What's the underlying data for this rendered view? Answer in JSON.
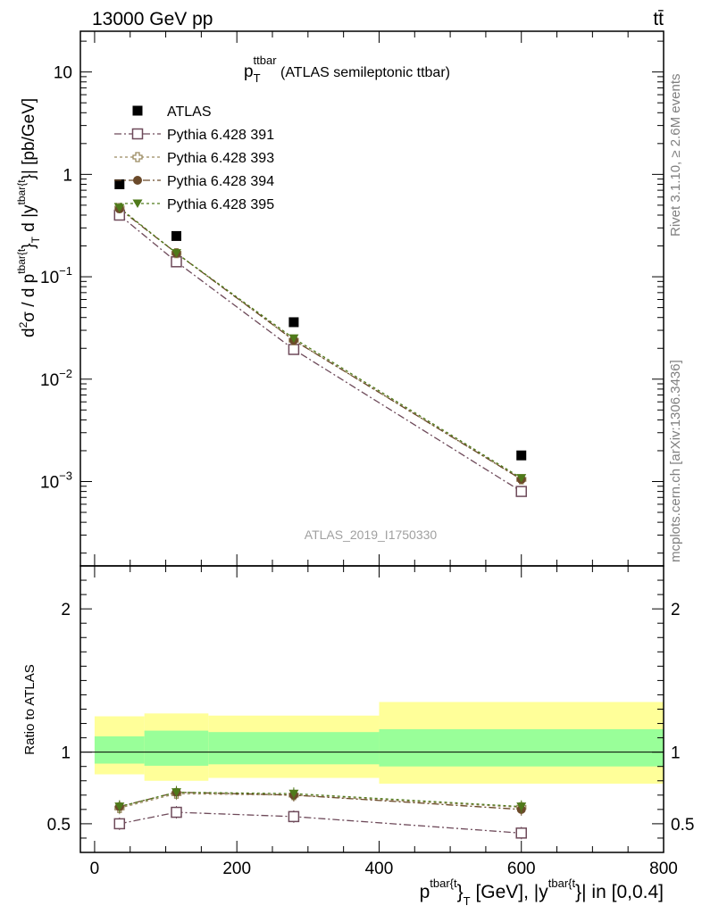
{
  "header": {
    "left": "13000 GeV pp",
    "right": "tt̄"
  },
  "side_labels": {
    "rivet": "Rivet 3.1.10, ≥ 2.6M events",
    "mcplots": "mcplots.cern.ch [arXiv:1306.3436]"
  },
  "watermark": "ATLAS_2019_I1750330",
  "chart_data": [
    {
      "type": "scatter",
      "panel": "main",
      "title_main": "p",
      "title_sub": "T",
      "title_sup": "ttbar",
      "title_rest": " (ATLAS semileptonic ttbar)",
      "ylabel": "d²σ / d p^{tbar{t}}_T d |y^{tbar{t}}| [pb/GeV]",
      "ylabel_parts": {
        "d": "d",
        "sq": "2",
        "sigma": "σ / d p",
        "sup1": "tbar{t",
        "close1": "}",
        "sub1": "T",
        "mid": " d |y",
        "sup2": "tbar{t",
        "close2": "}",
        "end": "| [pb/GeV]"
      },
      "y_scale": "log",
      "ylim": [
        0.00015,
        25
      ],
      "xlim": [
        -20,
        800
      ],
      "y_ticks": [
        {
          "v": 0.001,
          "base": "10",
          "exp": "−3"
        },
        {
          "v": 0.01,
          "base": "10",
          "exp": "−2"
        },
        {
          "v": 0.1,
          "base": "10",
          "exp": "−1"
        },
        {
          "v": 1,
          "base": "1",
          "exp": ""
        },
        {
          "v": 10,
          "base": "10",
          "exp": ""
        }
      ],
      "legend_position": "top-left",
      "x": [
        35,
        115,
        280,
        600
      ],
      "series": [
        {
          "name": "ATLAS",
          "values": [
            0.8,
            0.25,
            0.036,
            0.0018
          ],
          "color": "#000000",
          "marker": "filled-square",
          "line": "none"
        },
        {
          "name": "Pythia 6.428 391",
          "values": [
            0.4,
            0.14,
            0.0195,
            0.0008
          ],
          "color": "#6e4a5a",
          "marker": "open-square",
          "line": "dash-dot"
        },
        {
          "name": "Pythia 6.428 393",
          "values": [
            0.47,
            0.17,
            0.024,
            0.00105
          ],
          "color": "#9a8a60",
          "marker": "open-cross",
          "line": "dotted"
        },
        {
          "name": "Pythia 6.428 394",
          "values": [
            0.46,
            0.17,
            0.024,
            0.00105
          ],
          "color": "#6b4a2a",
          "marker": "filled-circle",
          "line": "dash-dot"
        },
        {
          "name": "Pythia 6.428 395",
          "values": [
            0.47,
            0.17,
            0.025,
            0.00108
          ],
          "color": "#4f7a1a",
          "marker": "filled-triangle-down",
          "line": "dotted"
        }
      ]
    },
    {
      "type": "scatter",
      "panel": "ratio",
      "ylabel": "Ratio to ATLAS",
      "xlabel_parts": {
        "p": "p",
        "sup1": "tbar{t",
        "close1": "}",
        "sub1": "T",
        "mid": " [GeV], |y",
        "sup2": "tbar{t",
        "close2": "}",
        "end": "| in [0,0.4]"
      },
      "ylim": [
        0.3,
        2.3
      ],
      "xlim": [
        -20,
        800
      ],
      "y_ticks": [
        0.5,
        1,
        2
      ],
      "y_tick_labels": [
        "0.5",
        "1",
        "2"
      ],
      "x_ticks": [
        0,
        200,
        400,
        600,
        800
      ],
      "x_tick_labels": [
        "0",
        "200",
        "400",
        "600",
        "800"
      ],
      "bands": [
        {
          "x0": 0,
          "x1": 70,
          "stat_lo": 0.92,
          "stat_hi": 1.11,
          "tot_lo": 0.845,
          "tot_hi": 1.25
        },
        {
          "x0": 70,
          "x1": 160,
          "stat_lo": 0.905,
          "stat_hi": 1.15,
          "tot_lo": 0.8,
          "tot_hi": 1.27
        },
        {
          "x0": 160,
          "x1": 400,
          "stat_lo": 0.915,
          "stat_hi": 1.14,
          "tot_lo": 0.82,
          "tot_hi": 1.255
        },
        {
          "x0": 400,
          "x1": 800,
          "stat_lo": 0.9,
          "stat_hi": 1.16,
          "tot_lo": 0.78,
          "tot_hi": 1.35
        }
      ],
      "band_colors": {
        "stat": "#99ff99",
        "total": "#ffff99"
      },
      "x": [
        35,
        115,
        280,
        600
      ],
      "series": [
        {
          "name": "Pythia 6.428 391",
          "values": [
            0.5,
            0.58,
            0.55,
            0.435
          ]
        },
        {
          "name": "Pythia 6.428 393",
          "values": [
            0.61,
            0.71,
            0.7,
            0.615
          ]
        },
        {
          "name": "Pythia 6.428 394",
          "values": [
            0.62,
            0.72,
            0.7,
            0.6
          ]
        },
        {
          "name": "Pythia 6.428 395",
          "values": [
            0.62,
            0.72,
            0.71,
            0.62
          ]
        }
      ]
    }
  ]
}
